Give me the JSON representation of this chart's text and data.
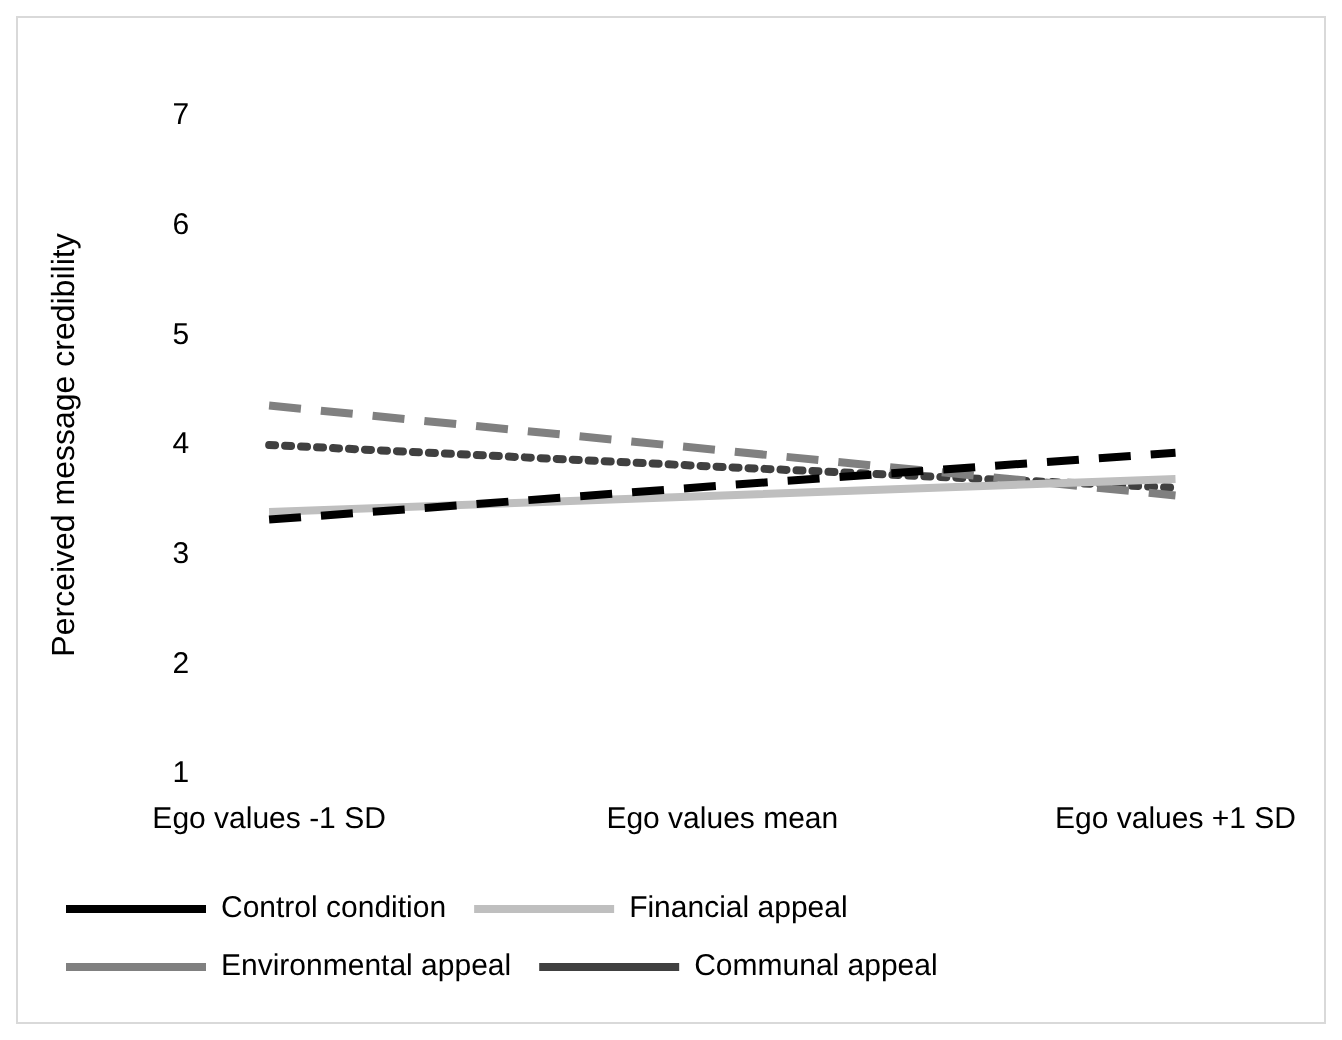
{
  "chart_data": {
    "type": "line",
    "ylabel": "Perceived message credibility",
    "categories": [
      "Ego values -1 SD",
      "Ego values mean",
      "Ego values +1 SD"
    ],
    "series": [
      {
        "name": "Control condition",
        "color": "#000000",
        "line_style": "dashed",
        "values": [
          3.32,
          3.63,
          3.93
        ]
      },
      {
        "name": "Financial appeal",
        "color": "#bfbfbf",
        "line_style": "solid",
        "values": [
          3.39,
          3.54,
          3.69
        ]
      },
      {
        "name": "Environmental appeal",
        "color": "#808080",
        "line_style": "dashed",
        "values": [
          4.36,
          3.95,
          3.54
        ]
      },
      {
        "name": "Communal appeal",
        "color": "#404040",
        "line_style": "dotted",
        "values": [
          4.0,
          3.8,
          3.61
        ]
      }
    ],
    "ylim": [
      1,
      7
    ],
    "yticks": [
      1,
      2,
      3,
      4,
      5,
      6,
      7
    ],
    "grid": false,
    "legend": "bottom",
    "marker": "none"
  }
}
